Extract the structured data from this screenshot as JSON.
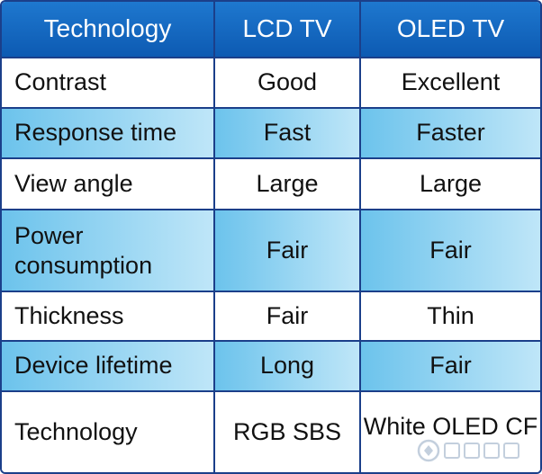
{
  "table": {
    "headers": [
      "Technology",
      "LCD TV",
      "OLED TV"
    ],
    "rows": [
      {
        "label": "Contrast",
        "lcd": "Good",
        "oled": "Excellent"
      },
      {
        "label": "Response time",
        "lcd": "Fast",
        "oled": "Faster"
      },
      {
        "label": "View angle",
        "lcd": "Large",
        "oled": "Large"
      },
      {
        "label": "Power consumption",
        "lcd": "Fair",
        "oled": "Fair"
      },
      {
        "label": "Thickness",
        "lcd": "Fair",
        "oled": "Thin"
      },
      {
        "label": "Device lifetime",
        "lcd": "Long",
        "oled": "Fair"
      },
      {
        "label": "Technology",
        "lcd": "RGB SBS",
        "oled": "White OLED CF"
      }
    ]
  },
  "colors": {
    "header": "#0d5ab2",
    "border": "#1b3f8a",
    "row_blue": "#6cc3ec",
    "row_white": "#ffffff"
  },
  "watermark": {
    "icon": "electronics-watermark-logo"
  }
}
